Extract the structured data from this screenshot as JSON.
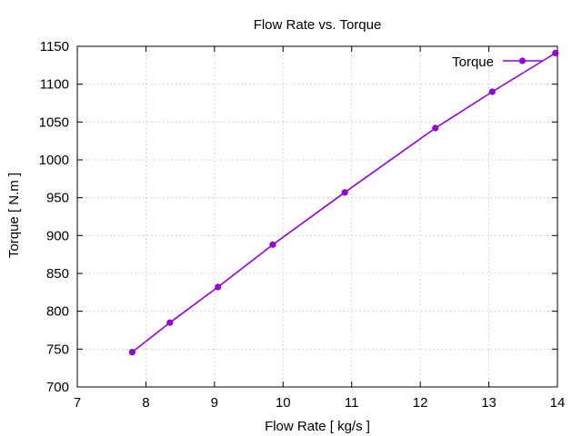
{
  "chart_data": {
    "type": "line",
    "title": "Flow Rate vs. Torque",
    "xlabel": "Flow Rate [ kg/s ]",
    "ylabel": "Torque [ N.m ]",
    "xlim": [
      7,
      14
    ],
    "ylim": [
      700,
      1150
    ],
    "xticks": [
      7,
      8,
      9,
      10,
      11,
      12,
      13,
      14
    ],
    "yticks": [
      700,
      750,
      800,
      850,
      900,
      950,
      1000,
      1050,
      1100,
      1150
    ],
    "grid": true,
    "legend_position": "top-right",
    "series": [
      {
        "name": "Torque",
        "color": "#9400d3",
        "marker": "circle",
        "x": [
          7.8,
          8.35,
          9.05,
          9.85,
          10.9,
          12.22,
          13.05,
          13.97
        ],
        "y": [
          746,
          785,
          832,
          888,
          957,
          1042,
          1090,
          1141
        ]
      }
    ]
  }
}
